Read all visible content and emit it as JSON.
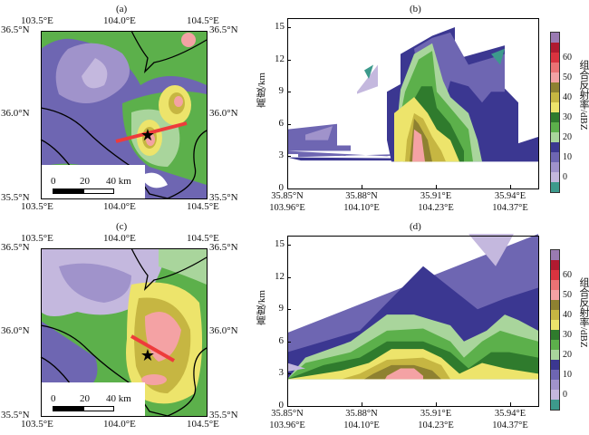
{
  "panels": {
    "a": {
      "label": "(a)"
    },
    "b": {
      "label": "(b)"
    },
    "c": {
      "label": "(c)"
    },
    "d": {
      "label": "(d)"
    }
  },
  "map_axes": {
    "lon_ticks": [
      "103.5°E",
      "104.0°E",
      "104.5°E"
    ],
    "lat_ticks": [
      "36.5°N",
      "36.0°N",
      "35.5°N"
    ],
    "scale_bar": {
      "labels": [
        "0",
        "20",
        "40 km"
      ]
    }
  },
  "section_axes": {
    "ylabel": "高度/km",
    "yticks": [
      "0",
      "3",
      "6",
      "9",
      "12",
      "15"
    ],
    "ylim": [
      0,
      16
    ],
    "xticks": [
      {
        "lat": "35.85°N",
        "lon": "103.96°E"
      },
      {
        "lat": "35.88°N",
        "lon": "104.10°E"
      },
      {
        "lat": "35.91°E",
        "lon": "104.23°E"
      },
      {
        "lat": "35.94°E",
        "lon": "104.37°E"
      }
    ]
  },
  "colorbar": {
    "label": "组合反射率/dBZ",
    "ticks": [
      "0",
      "10",
      "20",
      "30",
      "40",
      "50",
      "60"
    ],
    "colors": [
      "#3d9a8c",
      "#c4b8de",
      "#a093cb",
      "#6e66b2",
      "#3b3791",
      "#a9d59c",
      "#5cb04b",
      "#2f7b2d",
      "#ede46b",
      "#c6b642",
      "#8e8131",
      "#f4a2a4",
      "#eb7274",
      "#d9333f",
      "#b01a30",
      "#9a7ab2"
    ]
  },
  "annotations": {
    "cross_section_line_color": "#ee3b3b",
    "station_marker": "star-icon"
  }
}
